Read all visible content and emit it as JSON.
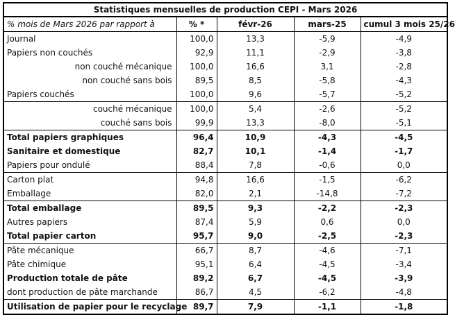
{
  "title": "Statistiques mensuelles de production CEPI - Mars 2026",
  "header": {
    "label": "% mois de Mars 2026 par rapport à",
    "pct": "% *",
    "feb": "févr-26",
    "mar": "mars-25",
    "cum": "cumul 3 mois 25/26"
  },
  "rows": [
    {
      "label": "Journal",
      "pct": "100,0",
      "feb": "13,3",
      "mar": "-5,9",
      "cum": "-4,9"
    },
    {
      "label": "Papiers non couchés",
      "pct": "92,9",
      "feb": "11,1",
      "mar": "-2,9",
      "cum": "-3,8"
    },
    {
      "label": "non couché mécanique",
      "pct": "100,0",
      "feb": "16,6",
      "mar": "3,1",
      "cum": "-2,8"
    },
    {
      "label": "non couché sans bois",
      "pct": "89,5",
      "feb": "8,5",
      "mar": "-5,8",
      "cum": "-4,3"
    },
    {
      "label": "Papiers couchés",
      "pct": "100,0",
      "feb": "9,6",
      "mar": "-5,7",
      "cum": "-5,2"
    },
    {
      "label": "couché mécanique",
      "pct": "100,0",
      "feb": "5,4",
      "mar": "-2,6",
      "cum": "-5,2"
    },
    {
      "label": "couché sans bois",
      "pct": "99,9",
      "feb": "13,3",
      "mar": "-8,0",
      "cum": "-5,1"
    },
    {
      "label": "Total papiers graphiques",
      "pct": "96,4",
      "feb": "10,9",
      "mar": "-4,3",
      "cum": "-4,5"
    },
    {
      "label": "Sanitaire et domestique",
      "pct": "82,7",
      "feb": "10,1",
      "mar": "-1,4",
      "cum": "-1,7"
    },
    {
      "label": "Papiers pour ondulé",
      "pct": "88,4",
      "feb": "7,8",
      "mar": "-0,6",
      "cum": "0,0"
    },
    {
      "label": "Carton plat",
      "pct": "94,8",
      "feb": "16,6",
      "mar": "-1,5",
      "cum": "-6,2"
    },
    {
      "label": "Emballage",
      "pct": "82,0",
      "feb": "2,1",
      "mar": "-14,8",
      "cum": "-7,2"
    },
    {
      "label": "Total emballage",
      "pct": "89,5",
      "feb": "9,3",
      "mar": "-2,2",
      "cum": "-2,3"
    },
    {
      "label": "Autres papiers",
      "pct": "87,4",
      "feb": "5,9",
      "mar": "0,6",
      "cum": "0,0"
    },
    {
      "label": "Total papier carton",
      "pct": "95,7",
      "feb": "9,0",
      "mar": "-2,5",
      "cum": "-2,3"
    },
    {
      "label": "Pâte mécanique",
      "pct": "66,7",
      "feb": "8,7",
      "mar": "-4,6",
      "cum": "-7,1"
    },
    {
      "label": "Pâte chimique",
      "pct": "95,1",
      "feb": "6,4",
      "mar": "-4,5",
      "cum": "-3,4"
    },
    {
      "label": "Production totale de pâte",
      "pct": "89,2",
      "feb": "6,7",
      "mar": "-4,5",
      "cum": "-3,9"
    },
    {
      "label": "dont production de pâte marchande",
      "pct": "86,7",
      "feb": "4,5",
      "mar": "-6,2",
      "cum": "-4,8"
    },
    {
      "label": "Utilisation de papier pour le recyclage",
      "pct": "89,7",
      "feb": "7,9",
      "mar": "-1,1",
      "cum": "-1,8"
    }
  ]
}
